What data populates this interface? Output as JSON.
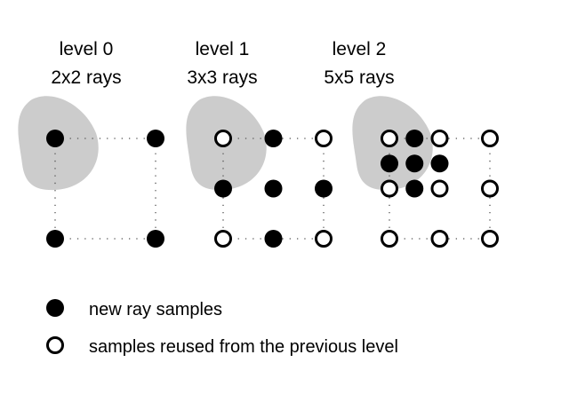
{
  "levels": [
    {
      "title": "level 0",
      "subtitle": "2x2 rays",
      "grid": 2,
      "samples": [
        {
          "row": 0,
          "col": 0,
          "type": "new"
        },
        {
          "row": 0,
          "col": 1,
          "type": "new"
        },
        {
          "row": 1,
          "col": 0,
          "type": "new"
        },
        {
          "row": 1,
          "col": 1,
          "type": "new"
        }
      ]
    },
    {
      "title": "level 1",
      "subtitle": "3x3 rays",
      "grid": 3,
      "samples": [
        {
          "row": 0,
          "col": 0,
          "type": "reused"
        },
        {
          "row": 0,
          "col": 1,
          "type": "new"
        },
        {
          "row": 0,
          "col": 2,
          "type": "reused"
        },
        {
          "row": 1,
          "col": 0,
          "type": "new"
        },
        {
          "row": 1,
          "col": 1,
          "type": "new"
        },
        {
          "row": 1,
          "col": 2,
          "type": "new"
        },
        {
          "row": 2,
          "col": 0,
          "type": "reused"
        },
        {
          "row": 2,
          "col": 1,
          "type": "new"
        },
        {
          "row": 2,
          "col": 2,
          "type": "reused"
        }
      ]
    },
    {
      "title": "level 2",
      "subtitle": "5x5 rays",
      "grid": 5,
      "samples": [
        {
          "row": 0,
          "col": 0,
          "type": "reused"
        },
        {
          "row": 0,
          "col": 1,
          "type": "new"
        },
        {
          "row": 0,
          "col": 2,
          "type": "reused"
        },
        {
          "row": 0,
          "col": 4,
          "type": "reused"
        },
        {
          "row": 1,
          "col": 0,
          "type": "new"
        },
        {
          "row": 1,
          "col": 1,
          "type": "new"
        },
        {
          "row": 1,
          "col": 2,
          "type": "new"
        },
        {
          "row": 2,
          "col": 0,
          "type": "reused"
        },
        {
          "row": 2,
          "col": 1,
          "type": "new"
        },
        {
          "row": 2,
          "col": 2,
          "type": "reused"
        },
        {
          "row": 2,
          "col": 4,
          "type": "reused"
        },
        {
          "row": 4,
          "col": 0,
          "type": "reused"
        },
        {
          "row": 4,
          "col": 2,
          "type": "reused"
        },
        {
          "row": 4,
          "col": 4,
          "type": "reused"
        }
      ]
    }
  ],
  "legend": {
    "new_label": "new ray samples",
    "reused_label": "samples reused from the previous level"
  },
  "colors": {
    "blob": "#cccccc",
    "new": "#000000",
    "reused": "#ffffff",
    "grid_line": "#555555"
  }
}
